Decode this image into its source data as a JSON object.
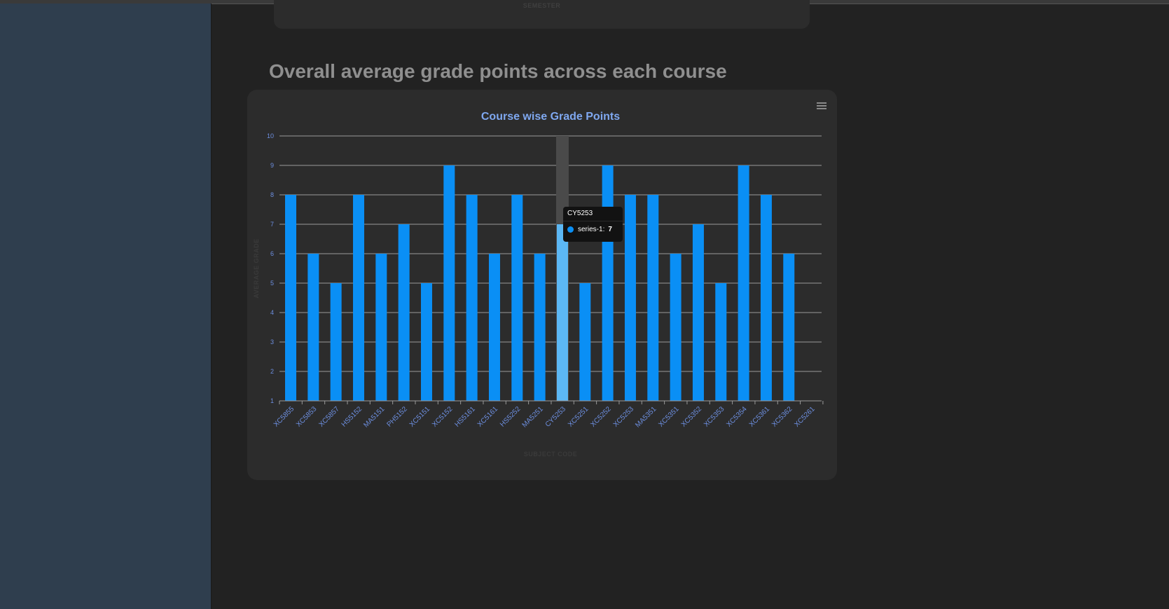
{
  "previous_chart": {
    "xaxis_label": "SEMESTER"
  },
  "section": {
    "title": "Overall average grade points across each course"
  },
  "chart_data": {
    "type": "bar",
    "title": "Course wise Grade Points",
    "xlabel": "SUBJECT CODE",
    "ylabel": "AVERAGE GRADE",
    "ylim": [
      1,
      10
    ],
    "yticks": [
      1,
      2,
      3,
      4,
      5,
      6,
      7,
      8,
      9,
      10
    ],
    "grid": true,
    "categories": [
      "XC5855",
      "XC5853",
      "XC5857",
      "HS5152",
      "MA5151",
      "PH5152",
      "XC5151",
      "XC5152",
      "HS5161",
      "XC5161",
      "HS5252",
      "MA5251",
      "CY5253",
      "XC5251",
      "XC5252",
      "XC5253",
      "MA5351",
      "XC5351",
      "XC5352",
      "XC5353",
      "XC5354",
      "XC5361",
      "XC5362",
      "XC5261"
    ],
    "series": [
      {
        "name": "series-1",
        "values": [
          8,
          6,
          5,
          8,
          6,
          7,
          5,
          9,
          8,
          6,
          8,
          6,
          7,
          5,
          9,
          8,
          8,
          6,
          7,
          5,
          9,
          8,
          6,
          null
        ]
      }
    ],
    "highlighted_category": "CY5253"
  },
  "tooltip": {
    "title": "CY5253",
    "series_label": "series-1:",
    "value": "7"
  },
  "colors": {
    "bar": "#0a8ff5",
    "bar_highlight": "#5cb8f5",
    "title": "#7fa8f0",
    "tick": "#6d8fe0",
    "grid": "#9a9a9a",
    "axis_title": "#3a3a3a",
    "background": "#222222",
    "sidebar": "#2f3e4e",
    "card": "#2c2c2c"
  },
  "icons": {
    "chart_menu": "hamburger-menu-icon"
  }
}
